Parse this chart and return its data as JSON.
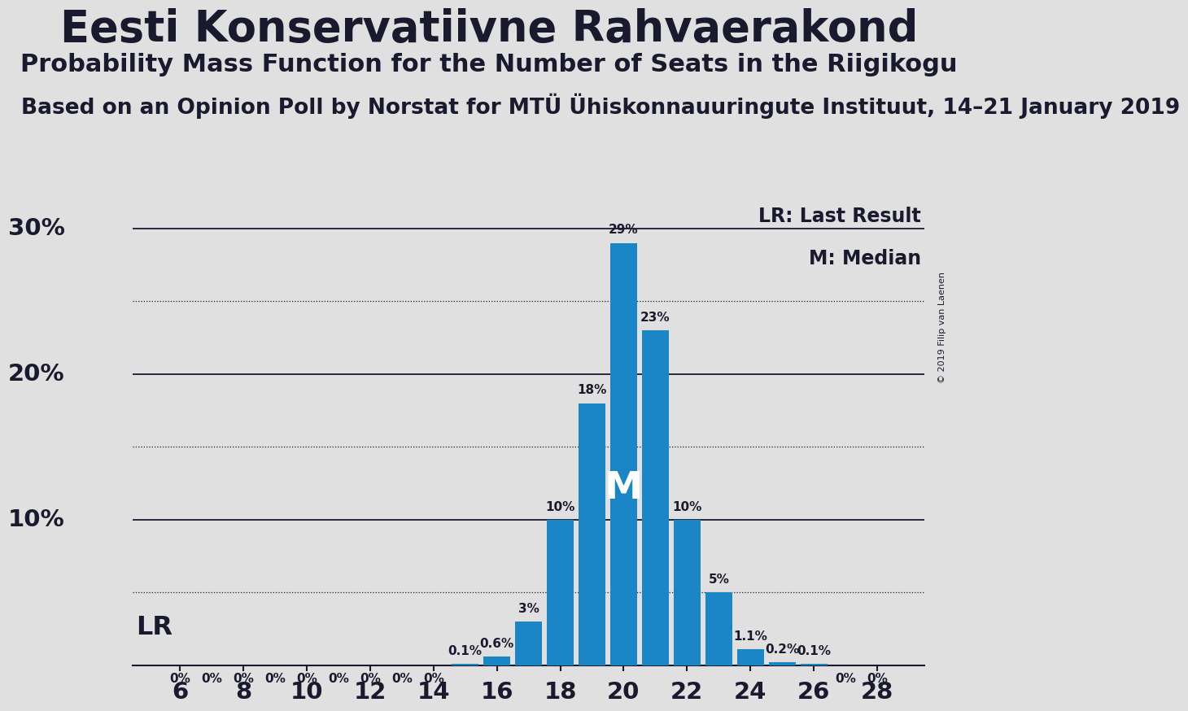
{
  "title": "Eesti Konservatiivne Rahvaerakond",
  "subtitle": "Probability Mass Function for the Number of Seats in the Riigikogu",
  "source_line": "Based on an Opinion Poll by Norstat for MTÜ Ühiskonnauuringute Instituut, 14–21 January 2019",
  "copyright": "© 2019 Filip van Laenen",
  "lr_label": "LR: Last Result",
  "m_label": "M: Median",
  "bar_color": "#1a86c6",
  "background_color": "#e0e0e0",
  "seats": [
    6,
    7,
    8,
    9,
    10,
    11,
    12,
    13,
    14,
    15,
    16,
    17,
    18,
    19,
    20,
    21,
    22,
    23,
    24,
    25,
    26,
    27,
    28
  ],
  "probabilities": [
    0.0,
    0.0,
    0.0,
    0.0,
    0.0,
    0.0,
    0.0,
    0.0,
    0.0,
    0.1,
    0.6,
    3.0,
    10.0,
    18.0,
    29.0,
    23.0,
    10.0,
    5.0,
    1.1,
    0.2,
    0.1,
    0.0,
    0.0
  ],
  "bar_labels": [
    "0%",
    "0%",
    "0%",
    "0%",
    "0%",
    "0%",
    "0%",
    "0%",
    "0%",
    "0.1%",
    "0.6%",
    "3%",
    "10%",
    "18%",
    "29%",
    "23%",
    "10%",
    "5%",
    "1.1%",
    "0.2%",
    "0.1%",
    "0%",
    "0%"
  ],
  "lr_seat": 7,
  "median_seat": 20,
  "ylim": [
    0,
    32
  ],
  "major_yticks": [
    10,
    20,
    30
  ],
  "major_ytick_labels": [
    "10%",
    "20%",
    "30%"
  ],
  "dotted_yticks": [
    5,
    15,
    25
  ],
  "xticks": [
    6,
    8,
    10,
    12,
    14,
    16,
    18,
    20,
    22,
    24,
    26,
    28
  ],
  "title_fontsize": 38,
  "subtitle_fontsize": 22,
  "source_fontsize": 19,
  "tick_fontsize": 21,
  "ylabel_fontsize": 21,
  "label_fontsize": 11,
  "legend_fontsize": 17,
  "lr_text_fontsize": 23,
  "m_inside_fontsize": 34,
  "copyright_fontsize": 8
}
